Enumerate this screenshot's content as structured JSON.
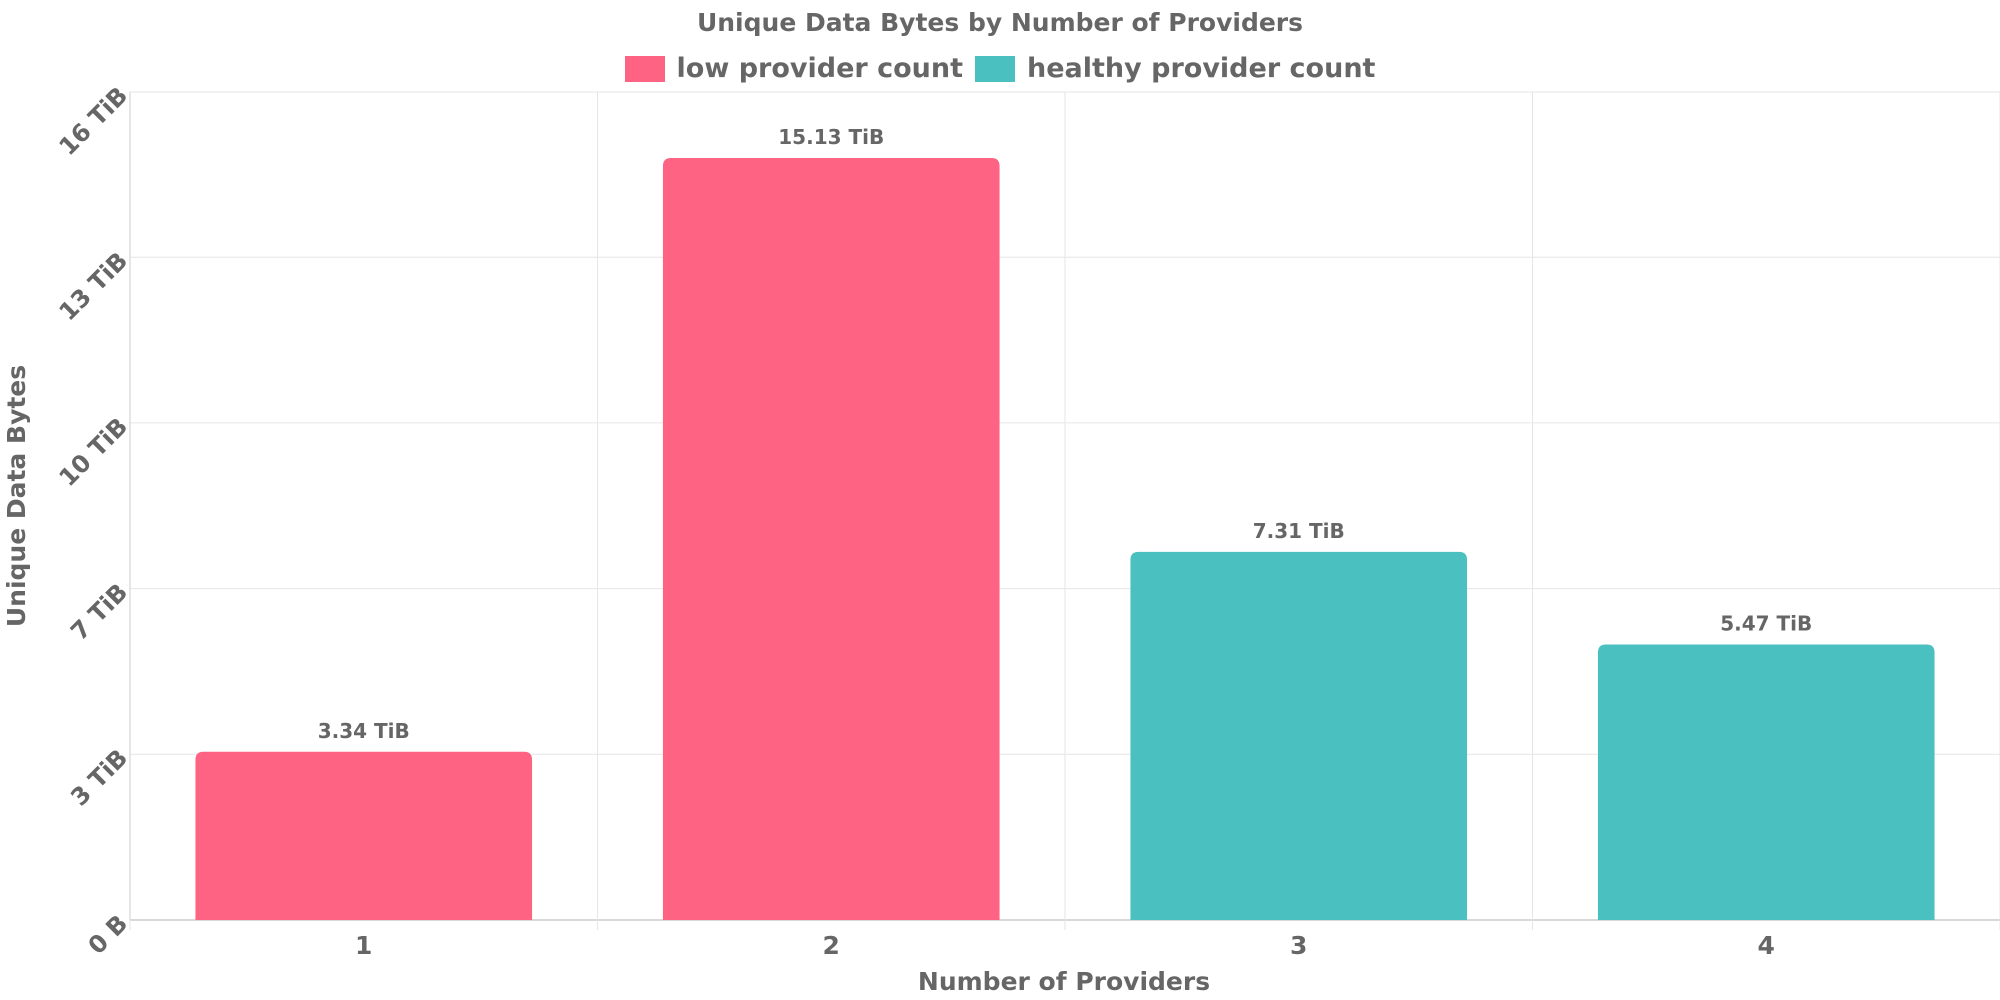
{
  "chart_data": {
    "type": "bar",
    "title": "Unique Data Bytes by Number of Providers",
    "xlabel": "Number of Providers",
    "ylabel": "Unique Data Bytes",
    "categories": [
      "1",
      "2",
      "3",
      "4"
    ],
    "values": [
      3.34,
      15.13,
      7.31,
      5.47
    ],
    "value_labels": [
      "3.34 TiB",
      "15.13 TiB",
      "7.31 TiB",
      "5.47 TiB"
    ],
    "unit": "TiB",
    "bar_series": [
      "low provider count",
      "low provider count",
      "healthy provider count",
      "healthy provider count"
    ],
    "series": [
      {
        "name": "low provider count",
        "color": "#ff6384"
      },
      {
        "name": "healthy provider count",
        "color": "#4bc0c0"
      }
    ],
    "ylim": [
      0,
      16.44
    ],
    "yticks": [
      0,
      3.29,
      6.58,
      9.87,
      13.16,
      16.44
    ],
    "ytick_labels": [
      "0 B",
      "3 TiB",
      "7 TiB",
      "10 TiB",
      "13 TiB",
      "16 TiB"
    ],
    "grid": true,
    "legend_position": "top-center"
  }
}
